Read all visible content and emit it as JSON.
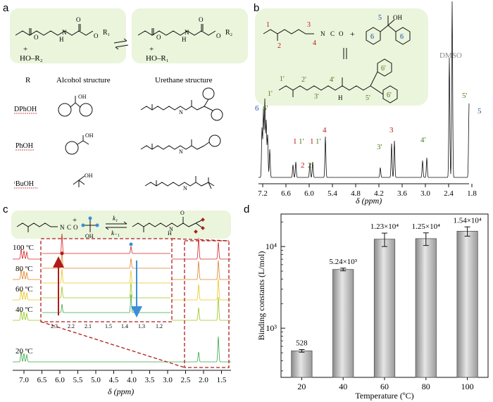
{
  "panels": {
    "a": {
      "label": "a",
      "reaction": {
        "plus1": "+",
        "reagent1": "HO–R₂",
        "plus2": "+",
        "reagent2": "HO–R₁",
        "r1": "R₁",
        "r2": "R₂",
        "n": "N",
        "h": "H"
      },
      "table_headers": {
        "r": "R",
        "alcohol": "Alcohol structure",
        "urethane": "Urethane structure"
      },
      "rows": [
        {
          "name": "DPhOH",
          "oh": "OH"
        },
        {
          "name": "PhOH",
          "oh": "OH"
        },
        {
          "name": "ᵗBuOH",
          "oh": "OH"
        }
      ]
    },
    "b": {
      "label": "b",
      "scheme_labels": [
        "1",
        "2",
        "3",
        "4",
        "5",
        "6",
        "6",
        "OH",
        "N",
        "C",
        "O",
        "+",
        "1'",
        "2'",
        "3'",
        "4'",
        "5'",
        "6'",
        "6'",
        "H"
      ],
      "solvent_label": "DMSO",
      "peak_labels": [
        {
          "text": "6",
          "color": "#1f5fa8"
        },
        {
          "text": "6'",
          "color": "#4a7a1a"
        },
        {
          "text": "1",
          "color": "#c0141c"
        },
        {
          "text": "1'",
          "color": "#4a7a1a"
        },
        {
          "text": "1",
          "color": "#c0141c"
        },
        {
          "text": "1'",
          "color": "#4a7a1a"
        },
        {
          "text": "2",
          "color": "#c0141c"
        },
        {
          "text": "2'",
          "color": "#4a7a1a"
        },
        {
          "text": "4",
          "color": "#c0141c"
        },
        {
          "text": "3",
          "color": "#c0141c"
        },
        {
          "text": "3'",
          "color": "#4a7a1a"
        },
        {
          "text": "4'",
          "color": "#4a7a1a"
        },
        {
          "text": "5'",
          "color": "#4a7a1a"
        },
        {
          "text": "5",
          "color": "#1f5fa8"
        }
      ],
      "axis": {
        "ticks": [
          "7.2",
          "6.6",
          "6.0",
          "5.4",
          "4.8",
          "4.2",
          "3.6",
          "3.0",
          "2.4",
          "1.8"
        ],
        "label": "δ (ppm)"
      }
    },
    "c": {
      "label": "c",
      "scheme": {
        "k1": "k₁",
        "k_1": "k₋₁",
        "plus": "+",
        "oh": "OH",
        "n": "N",
        "c": "C",
        "o": "O",
        "h": "H"
      },
      "temperatures": [
        "100 ºC",
        "80 ºC",
        "60 ºC",
        "40 ºC",
        "20 ºC"
      ],
      "trace_colors": [
        "#d62728",
        "#e0822a",
        "#e8c81c",
        "#9ac61c",
        "#3aa84a"
      ],
      "inset_ticks": [
        "2.3",
        "2.2",
        "2.1",
        "1.5",
        "1.4",
        "1.3",
        "1.2"
      ],
      "axis": {
        "ticks": [
          "7.0",
          "6.5",
          "6.0",
          "5.5",
          "5.0",
          "4.5",
          "4.0",
          "3.5",
          "3.0",
          "2.5",
          "2.0",
          "1.5"
        ],
        "label": "δ (ppm)"
      }
    }
  },
  "chart_data": {
    "type": "bar",
    "label": "d",
    "categories": [
      "20",
      "40",
      "60",
      "80",
      "100"
    ],
    "values": [
      528,
      5240,
      12300,
      12500,
      15400
    ],
    "errors": [
      20,
      200,
      2300,
      2200,
      2000
    ],
    "data_labels": [
      "528",
      "5.24×10³",
      "1.23×10⁴",
      "1.25×10⁴",
      "1.54×10⁴"
    ],
    "y_ticks": [
      "10³",
      "10⁴"
    ],
    "xlabel": "Temperature (ºC)",
    "ylabel": "Binding constants (L/mol)",
    "yscale": "log",
    "ylim": [
      250,
      25000
    ]
  }
}
